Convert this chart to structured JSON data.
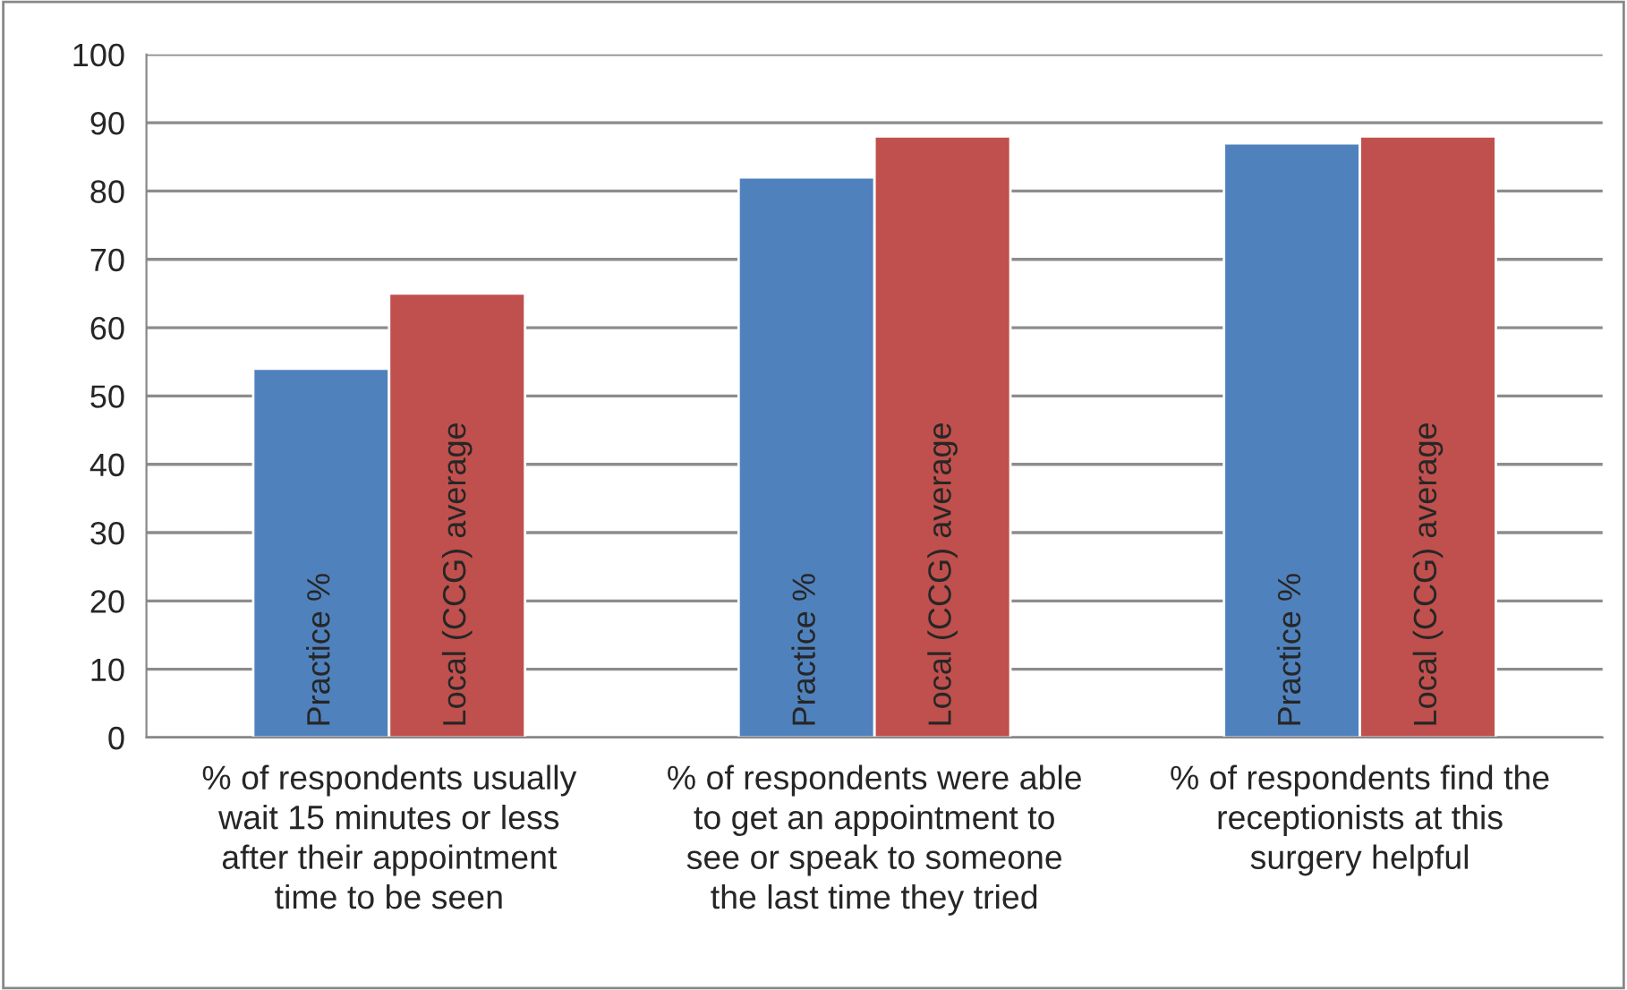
{
  "chart_data": {
    "type": "bar",
    "categories": [
      "% of respondents usually wait 15 minutes or less after their appointment time to be seen",
      "% of respondents were able to get an appointment to see or speak to someone the last time they tried",
      "% of respondents find the receptionists at this surgery helpful"
    ],
    "series": [
      {
        "name": "Practice %",
        "color": "#4f81bd",
        "values": [
          54,
          82,
          87
        ]
      },
      {
        "name": "Local (CCG) average",
        "color": "#c0504d",
        "values": [
          65,
          88,
          88
        ]
      }
    ],
    "ylim": [
      0,
      100
    ],
    "yticks": [
      0,
      10,
      20,
      30,
      40,
      50,
      60,
      70,
      80,
      90,
      100
    ],
    "grid": "y",
    "legend": false
  }
}
